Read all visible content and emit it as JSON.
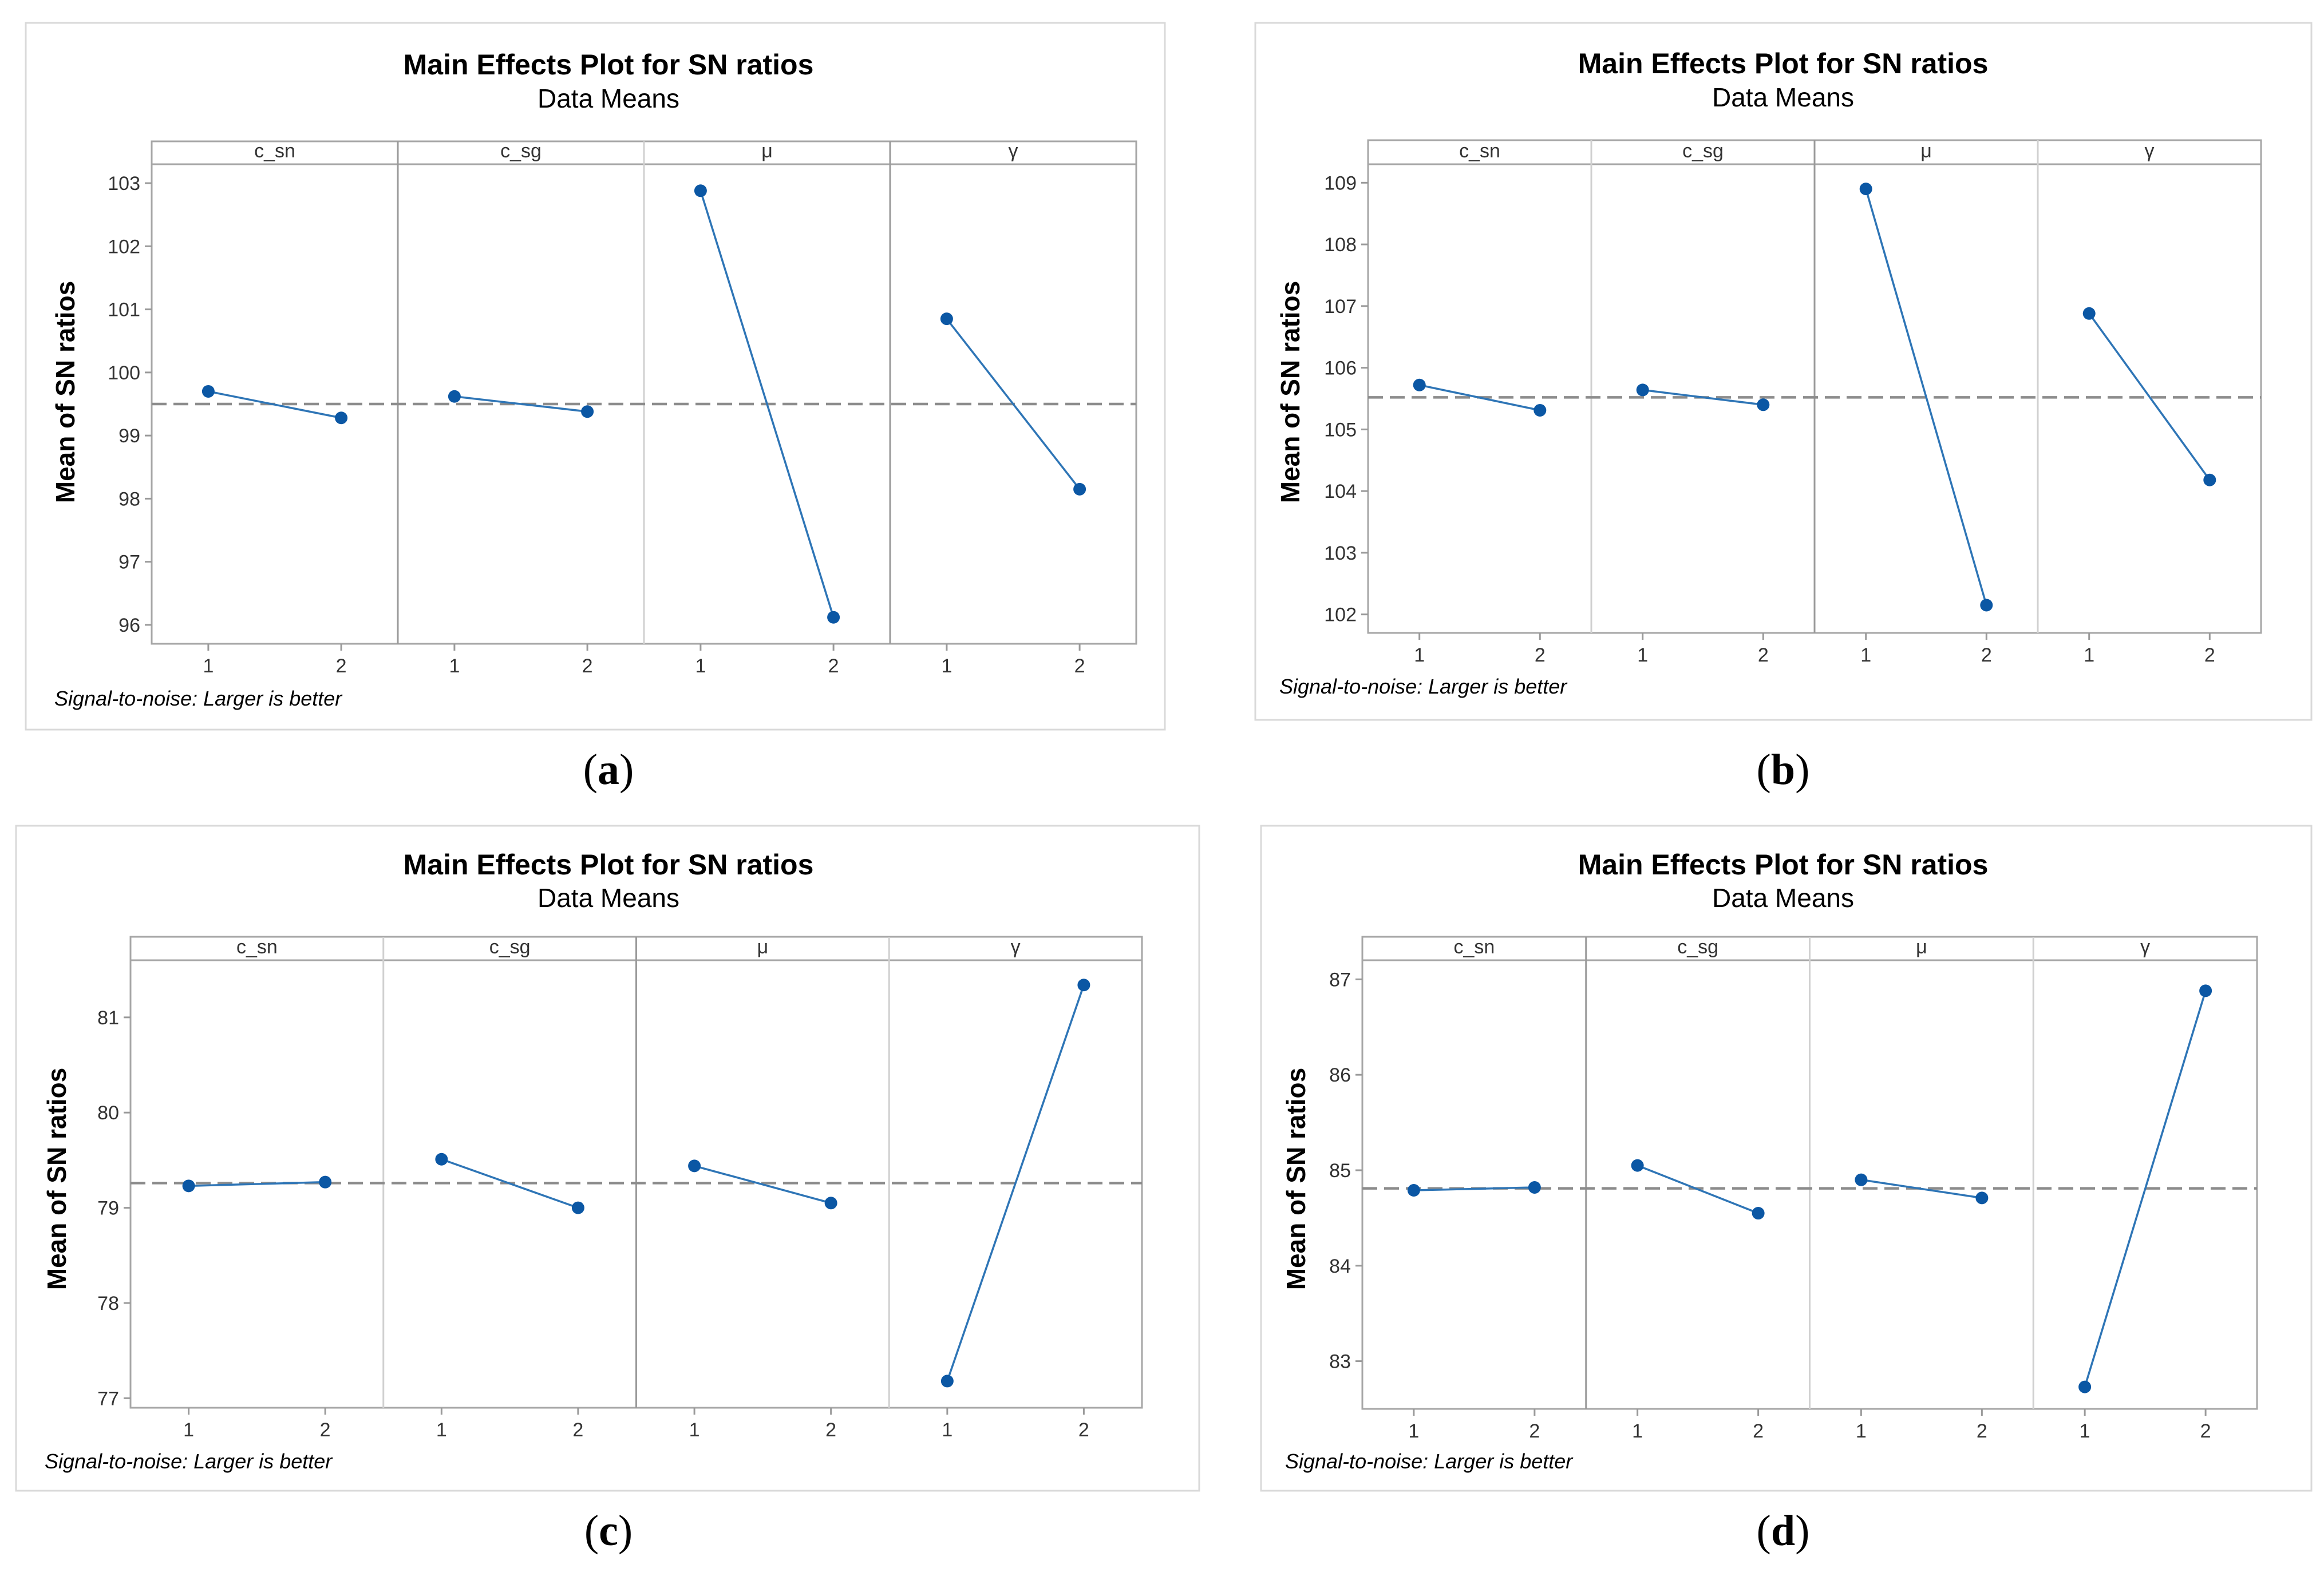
{
  "chart_data": [
    {
      "id": "a",
      "type": "line",
      "title": "Main Effects Plot for SN ratios",
      "subtitle": "Data Means",
      "ylabel": "Mean of SN ratios",
      "footnote": "Signal-to-noise: Larger is better",
      "caption": {
        "open": "(",
        "letter": "a",
        "close": ")"
      },
      "ylim": [
        95.7,
        103.3
      ],
      "yticks": [
        96,
        97,
        98,
        99,
        100,
        101,
        102,
        103
      ],
      "reference_line": 99.5,
      "x_levels": [
        "1",
        "2"
      ],
      "factors": [
        {
          "name": "c_sn",
          "values": [
            99.7,
            99.28
          ]
        },
        {
          "name": "c_sg",
          "values": [
            99.62,
            99.38
          ]
        },
        {
          "name": "μ",
          "values": [
            102.88,
            96.12
          ]
        },
        {
          "name": "γ",
          "values": [
            100.85,
            98.15
          ]
        }
      ]
    },
    {
      "id": "b",
      "type": "line",
      "title": "Main Effects Plot for SN ratios",
      "subtitle": "Data Means",
      "ylabel": "Mean of SN ratios",
      "footnote": "Signal-to-noise: Larger is better",
      "caption": {
        "open": "(",
        "letter": "b",
        "close": ")"
      },
      "ylim": [
        101.7,
        109.3
      ],
      "yticks": [
        102,
        103,
        104,
        105,
        106,
        107,
        108,
        109
      ],
      "reference_line": 105.52,
      "x_levels": [
        "1",
        "2"
      ],
      "factors": [
        {
          "name": "c_sn",
          "values": [
            105.72,
            105.31
          ]
        },
        {
          "name": "c_sg",
          "values": [
            105.64,
            105.4
          ]
        },
        {
          "name": "μ",
          "values": [
            108.9,
            102.15
          ]
        },
        {
          "name": "γ",
          "values": [
            106.88,
            104.18
          ]
        }
      ]
    },
    {
      "id": "c",
      "type": "line",
      "title": "Main Effects Plot for SN ratios",
      "subtitle": "Data Means",
      "ylabel": "Mean of SN ratios",
      "footnote": "Signal-to-noise: Larger is better",
      "caption": {
        "open": "(",
        "letter": "c",
        "close": ")"
      },
      "ylim": [
        76.9,
        81.6
      ],
      "yticks": [
        77,
        78,
        79,
        80,
        81
      ],
      "reference_line": 79.26,
      "x_levels": [
        "1",
        "2"
      ],
      "factors": [
        {
          "name": "c_sn",
          "values": [
            79.23,
            79.27
          ]
        },
        {
          "name": "c_sg",
          "values": [
            79.51,
            79.0
          ]
        },
        {
          "name": "μ",
          "values": [
            79.44,
            79.05
          ]
        },
        {
          "name": "γ",
          "values": [
            77.18,
            81.34
          ]
        }
      ]
    },
    {
      "id": "d",
      "type": "line",
      "title": "Main Effects Plot for SN ratios",
      "subtitle": "Data Means",
      "ylabel": "Mean of SN ratios",
      "footnote": "Signal-to-noise: Larger is better",
      "caption": {
        "open": "(",
        "letter": "d",
        "close": ")"
      },
      "ylim": [
        82.5,
        87.2
      ],
      "yticks": [
        83,
        84,
        85,
        86,
        87
      ],
      "reference_line": 84.81,
      "x_levels": [
        "1",
        "2"
      ],
      "factors": [
        {
          "name": "c_sn",
          "values": [
            84.79,
            84.82
          ]
        },
        {
          "name": "c_sg",
          "values": [
            85.05,
            84.55
          ]
        },
        {
          "name": "μ",
          "values": [
            84.9,
            84.71
          ]
        },
        {
          "name": "γ",
          "values": [
            82.73,
            86.88
          ]
        }
      ]
    }
  ]
}
